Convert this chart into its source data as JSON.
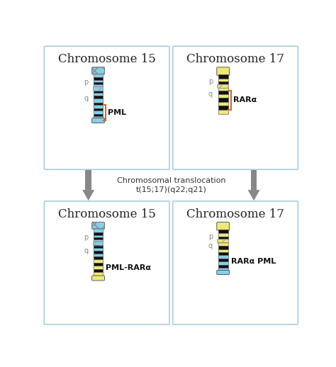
{
  "chr15_top_title": "Chromosome 15",
  "chr17_top_title": "Chromosome 17",
  "chr15_bot_title": "Chromosome 15",
  "chr17_bot_title": "Chromosome 17",
  "pml_label": "PML",
  "rara_label": "RARα",
  "pml_rara_label": "PML-RARα",
  "rara_pml_label": "RARα PML",
  "light_blue": "#87CEEB",
  "yellow": "#EEE87A",
  "black": "#111111",
  "dark_gray": "#888888",
  "orange": "#D2691E",
  "box_border": "#AACCDD",
  "bg": "#FFFFFF",
  "title_fs": 12,
  "label_fs": 8,
  "pq_fs": 7
}
